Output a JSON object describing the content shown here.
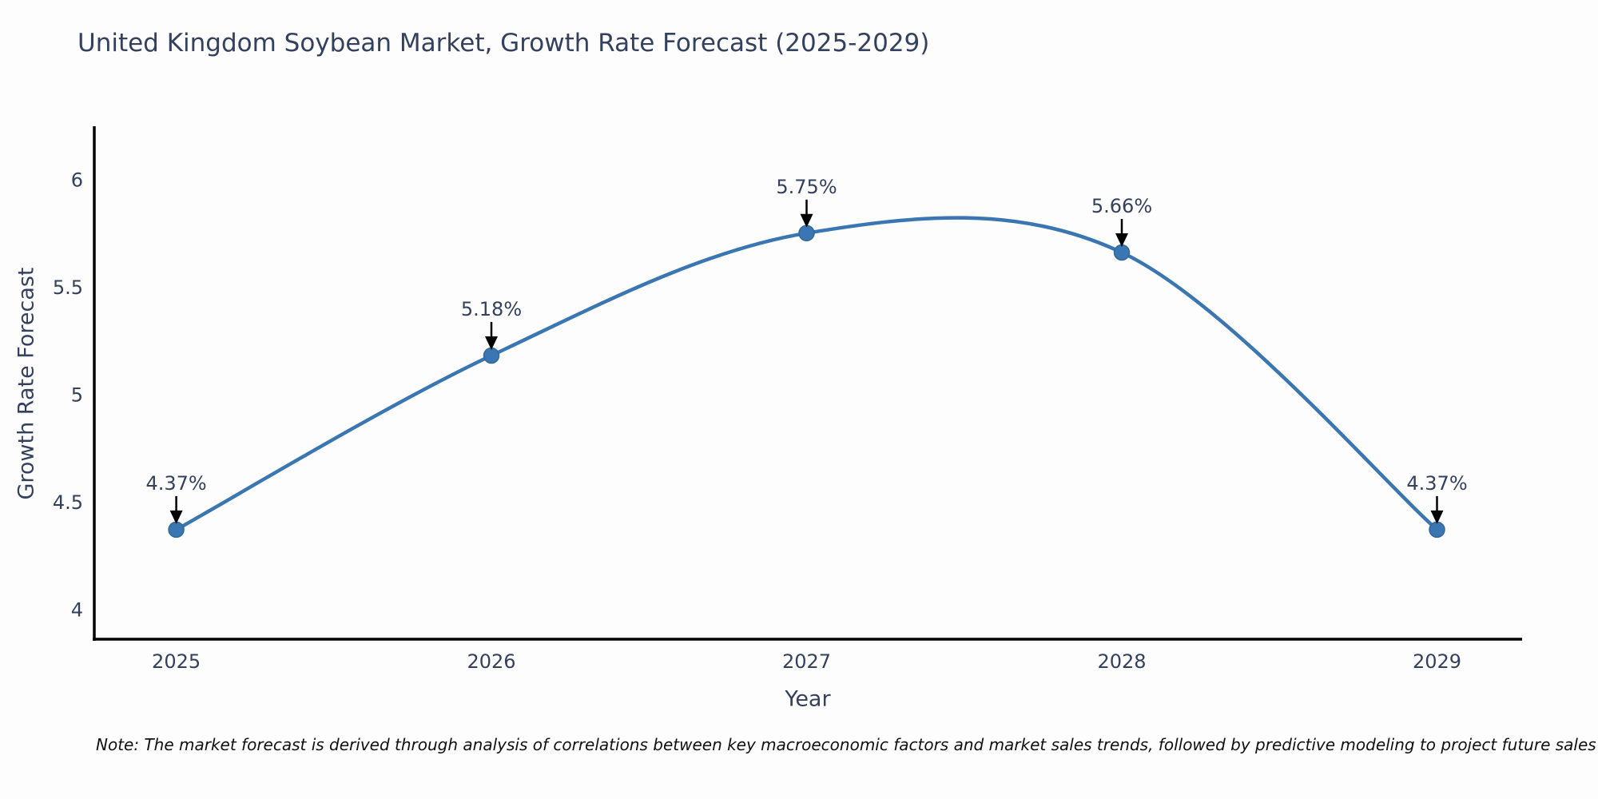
{
  "note": "Note: The market forecast is derived through analysis of correlations between key macroeconomic factors and market sales trends, followed by predictive modeling to project future sales",
  "chart_data": {
    "type": "line",
    "title": "United Kingdom Soybean Market, Growth Rate Forecast (2025-2029)",
    "xlabel": "Year",
    "ylabel": "Growth Rate Forecast",
    "x": [
      2025,
      2026,
      2027,
      2028,
      2029
    ],
    "y": [
      4.37,
      5.18,
      5.75,
      5.66,
      4.37
    ],
    "point_labels": [
      "4.37%",
      "5.18%",
      "5.75%",
      "5.66%",
      "4.37%"
    ],
    "xtick_labels": [
      "2025",
      "2026",
      "2027",
      "2028",
      "2029"
    ],
    "xtick_values": [
      2025,
      2026,
      2027,
      2028,
      2029
    ],
    "ytick_labels": [
      "4",
      "4.5",
      "5",
      "5.5",
      "6"
    ],
    "ytick_values": [
      4,
      4.5,
      5,
      5.5,
      6
    ],
    "xlim": [
      2024.74,
      2029.27
    ],
    "ylim": [
      3.86,
      6.24
    ],
    "grid": false,
    "legend": null,
    "smooth": true,
    "colors": {
      "line": "#3a76b1",
      "marker": "#3a76b1",
      "marker_edge": "#336899",
      "arrow": "#000000",
      "axis": "#000000",
      "tick_text": "#33415e",
      "annotation_text": "#33415e"
    }
  }
}
